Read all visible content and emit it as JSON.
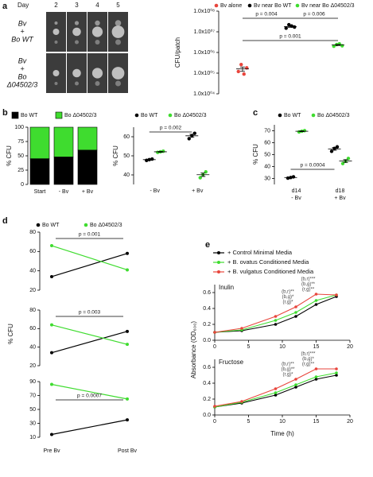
{
  "panel_labels": [
    "a",
    "b",
    "c",
    "d",
    "e"
  ],
  "colony_images": {
    "header": "Day",
    "days": [
      "2",
      "3",
      "4",
      "5"
    ],
    "rows": [
      [
        "Bv",
        "+",
        "Bo WT"
      ],
      [
        "Bv",
        "+",
        "Bo",
        "Δ04502/3"
      ]
    ]
  },
  "chart_data": [
    {
      "type": "dotplot",
      "log_scale": true,
      "ylabel": "CFU/patch",
      "ylim": [
        10000,
        100000000
      ],
      "yticks": [
        {
          "value": 10000,
          "label": "1.0x10⁰⁴"
        },
        {
          "value": 100000,
          "label": "1.0x10⁰⁵"
        },
        {
          "value": 1000000,
          "label": "1.0x10⁰⁶"
        },
        {
          "value": 10000000,
          "label": "1.0x10⁰⁷"
        },
        {
          "value": 100000000,
          "label": "1.0x10⁰⁸"
        }
      ],
      "series": [
        {
          "name": "Bv alone",
          "color": "#e8453c",
          "values": [
            120000,
            260000,
            90000,
            180000
          ],
          "mean": 160000,
          "error": 38000
        },
        {
          "name": "Bv near Bo WT",
          "color": "#000000",
          "values": [
            15000000,
            22000000,
            19000000,
            17000000
          ],
          "mean": 18000000,
          "error": 1500000
        },
        {
          "name": "Bv near Bo Δ04502/3",
          "color": "#3fdc2f",
          "values": [
            2000000,
            2400000,
            2600000,
            2100000
          ],
          "mean": 2300000,
          "error": 130000
        }
      ],
      "annotations": [
        "p = 0.004",
        "p = 0.006",
        "p = 0.001"
      ]
    },
    {
      "type": "stacked-bar",
      "ylabel": "% CFU",
      "categories": [
        "Start",
        "- Bv",
        "+ Bv"
      ],
      "ylim": [
        0,
        100
      ],
      "yticks": [
        0,
        25,
        50,
        75,
        100
      ],
      "series": [
        {
          "name": "Bo WT",
          "color": "#000000",
          "values": [
            45,
            48,
            60
          ]
        },
        {
          "name": "Bo Δ04502/3",
          "color": "#3fdc2f",
          "values": [
            55,
            52,
            40
          ]
        }
      ]
    },
    {
      "type": "dotplot",
      "ylabel": "% CFU",
      "categories": [
        "- Bv",
        "+ Bv"
      ],
      "ylim": [
        35,
        65
      ],
      "yticks": [
        40,
        50,
        60
      ],
      "series": [
        {
          "name": "Bo WT",
          "color": "#000000",
          "values": [
            [
              47.6,
              48.0,
              48.3
            ],
            [
              59.0,
              60.6,
              61.8
            ]
          ],
          "mean": [
            48.0,
            60.5
          ],
          "error": [
            0.2,
            0.8
          ]
        },
        {
          "name": "Bo Δ04502/3",
          "color": "#3fdc2f",
          "values": [
            [
              51.8,
              52.1,
              52.4
            ],
            [
              38.5,
              40.2,
              41.6
            ]
          ],
          "mean": [
            52.1,
            40.1
          ],
          "error": [
            0.2,
            0.9
          ]
        }
      ],
      "annotations": [
        "p = 0.002"
      ]
    },
    {
      "type": "dotplot",
      "ylabel": "% CFU",
      "categories": [
        [
          "d14",
          "- Bv"
        ],
        [
          "d18",
          "+ Bv"
        ]
      ],
      "ylim": [
        25,
        75
      ],
      "yticks": [
        30,
        40,
        50,
        60,
        70
      ],
      "series": [
        {
          "name": "Bo WT",
          "color": "#000000",
          "values": [
            [
              30.3,
              30.8,
              31.4
            ],
            [
              52.8,
              55.2,
              56.5
            ]
          ],
          "mean": [
            30.8,
            54.8
          ],
          "error": [
            0.3,
            1.1
          ]
        },
        {
          "name": "Bo Δ04502/3",
          "color": "#3fdc2f",
          "values": [
            [
              69.0,
              69.6,
              70.1
            ],
            [
              42.5,
              44.5,
              46.8
            ]
          ],
          "mean": [
            69.6,
            44.6
          ],
          "error": [
            0.3,
            1.2
          ]
        }
      ],
      "annotations": [
        "p = 0.0004"
      ]
    },
    {
      "type": "paired-lines",
      "ylabel": "% CFU",
      "categories": [
        "Pre Bv",
        "Post Bv"
      ],
      "legend": [
        {
          "name": "Bo WT",
          "color": "#000000"
        },
        {
          "name": "Bo Δ04502/3",
          "color": "#3fdc2f"
        }
      ],
      "panels": [
        {
          "ylim": [
            20,
            80
          ],
          "yticks": [
            20,
            40,
            60,
            80
          ],
          "annotation": "p = 0.001",
          "series": [
            {
              "values": [
                34,
                58
              ]
            },
            {
              "values": [
                66,
                41
              ]
            }
          ]
        },
        {
          "ylim": [
            20,
            80
          ],
          "yticks": [
            20,
            40,
            60,
            80
          ],
          "annotation": "p = 0.003",
          "series": [
            {
              "values": [
                34,
                57
              ]
            },
            {
              "values": [
                64,
                43
              ]
            }
          ]
        },
        {
          "ylim": [
            10,
            90
          ],
          "yticks": [
            10,
            30,
            50,
            70,
            90
          ],
          "annotation": "p = 0.0007",
          "series": [
            {
              "values": [
                14,
                35
              ]
            },
            {
              "values": [
                86,
                65
              ]
            }
          ]
        }
      ]
    },
    {
      "type": "growth-curves",
      "xlabel": "Time (h)",
      "ylabel": "Absorbance (OD₆₀₀)",
      "legend": [
        {
          "name": "+ Control Minimal Media",
          "color": "#000000"
        },
        {
          "name": "+ B. ovatus Conditioned Media",
          "color": "#3fdc2f"
        },
        {
          "name": "+ B. vulgatus Conditioned Media",
          "color": "#e8453c"
        }
      ],
      "x": [
        0,
        4,
        9,
        12,
        15,
        18
      ],
      "xlim": [
        0,
        20
      ],
      "xticks": [
        0,
        5,
        10,
        15,
        20
      ],
      "panels": [
        {
          "title": "Inulin",
          "ylim": [
            0,
            0.7
          ],
          "yticks": [
            {
              "value": 0,
              "label": "0.0"
            },
            0.2,
            0.4,
            0.6
          ],
          "series": [
            {
              "values": [
                0.1,
                0.12,
                0.2,
                0.3,
                0.45,
                0.55
              ]
            },
            {
              "values": [
                0.1,
                0.13,
                0.25,
                0.35,
                0.5,
                0.57
              ]
            },
            {
              "values": [
                0.1,
                0.15,
                0.3,
                0.42,
                0.58,
                0.57
              ]
            }
          ],
          "annotations": [
            [
              "(b,r)**",
              "(b,g)*",
              "(r,g)*"
            ],
            [
              "(b,r)***",
              "(b,g)**",
              "(r,g)**"
            ]
          ]
        },
        {
          "title": "Fructose",
          "ylim": [
            0,
            0.7
          ],
          "yticks": [
            {
              "value": 0,
              "label": "0.0"
            },
            0.2,
            0.4,
            0.6
          ],
          "series": [
            {
              "values": [
                0.1,
                0.15,
                0.25,
                0.35,
                0.45,
                0.5
              ]
            },
            {
              "values": [
                0.1,
                0.16,
                0.28,
                0.38,
                0.48,
                0.53
              ]
            },
            {
              "values": [
                0.11,
                0.17,
                0.33,
                0.45,
                0.58,
                0.58
              ]
            }
          ],
          "annotations": [
            [
              "(b,r)**",
              "(b,g)**",
              "(r,g)*"
            ],
            [
              "(b,r)***",
              "(b,g)*",
              "(r,g)**"
            ]
          ]
        }
      ]
    }
  ]
}
